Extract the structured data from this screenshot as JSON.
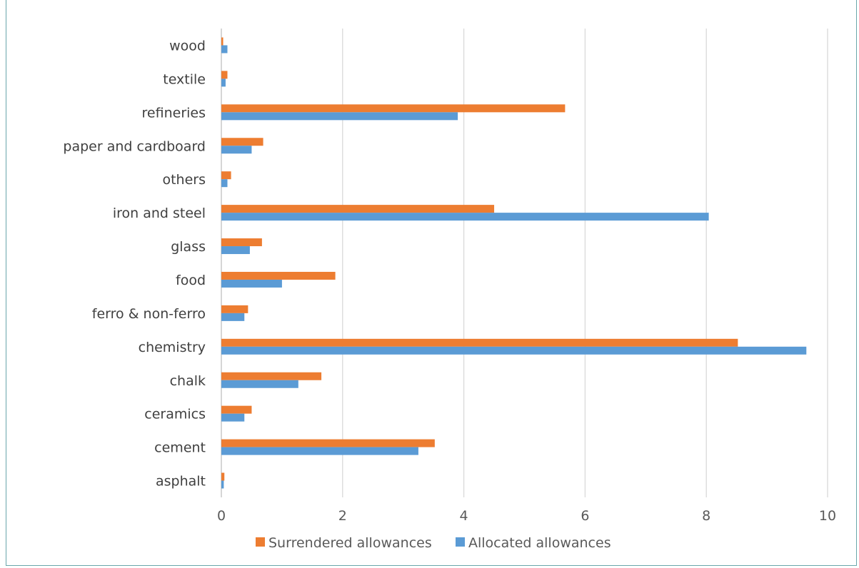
{
  "chart_data": {
    "type": "bar",
    "orientation": "horizontal",
    "categories": [
      "asphalt",
      "cement",
      "ceramics",
      "chalk",
      "chemistry",
      "ferro & non-ferro",
      "food",
      "glass",
      "iron and steel",
      "others",
      "paper and cardboard",
      "refineries",
      "textile",
      "wood"
    ],
    "series": [
      {
        "name": "Surrendered allowances",
        "values": [
          0.05,
          3.52,
          0.5,
          1.65,
          8.52,
          0.44,
          1.88,
          0.67,
          4.5,
          0.16,
          0.69,
          5.67,
          0.1,
          0.03
        ]
      },
      {
        "name": "Allocated allowances",
        "values": [
          0.04,
          3.25,
          0.38,
          1.27,
          9.65,
          0.38,
          1.0,
          0.47,
          8.04,
          0.1,
          0.5,
          3.9,
          0.07,
          0.1
        ]
      }
    ],
    "xlim": [
      0,
      10
    ],
    "x_ticks": [
      "0",
      "2",
      "4",
      "6",
      "8",
      "10"
    ],
    "grid": true,
    "legend_position": "bottom",
    "title": "",
    "xlabel": "",
    "ylabel": ""
  },
  "colors": {
    "surrendered": "#ED7D31",
    "allocated": "#5B9BD5",
    "grid": "#D9D9D9",
    "frame": "#6aa6ab"
  }
}
